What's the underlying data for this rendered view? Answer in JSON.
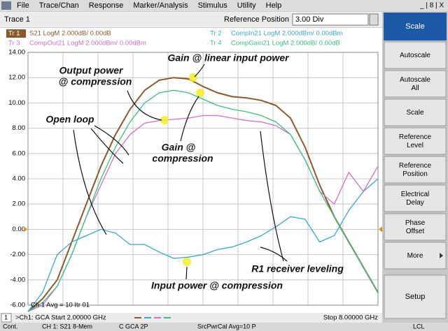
{
  "menu": [
    "File",
    "Trace/Chan",
    "Response",
    "Marker/Analysis",
    "Stimulus",
    "Utility",
    "Help"
  ],
  "window_controls": "_ | 8 | X",
  "toolbar": {
    "trace": "Trace 1",
    "field_label": "Reference Position",
    "field_value": "3.00 Div"
  },
  "softkeys": {
    "title": "Scale",
    "keys": [
      [
        "Autoscale"
      ],
      [
        "Autoscale",
        "All"
      ],
      [
        "Scale"
      ],
      [
        "Reference",
        "Level"
      ],
      [
        "Reference",
        "Position"
      ],
      [
        "Electrical",
        "Delay"
      ],
      [
        "Phase",
        "Offset"
      ],
      [
        "More"
      ]
    ],
    "bottom": "Setup"
  },
  "status": {
    "avg": "Ch 1 Avg =    10 Itr 01",
    "channel": "1",
    "start": ">Ch1: GCA Start  2.00000 GHz",
    "stop": "Stop  8.00000 GHz",
    "bar": [
      "Cont.",
      "CH 1:  S21 8-Mem",
      "C  GCA 2P",
      "SrcPwrCal Avg=10 P",
      "LCL"
    ]
  },
  "annotations": [
    [
      "Gain @ linear input power"
    ],
    [
      "Output power",
      "@ compression"
    ],
    [
      "Open loop"
    ],
    [
      "Gain @",
      "compression"
    ],
    [
      "R1 receiver leveling"
    ],
    [
      "Input power @ compression"
    ]
  ],
  "chart_data": {
    "type": "line",
    "x": [
      2,
      2.25,
      2.5,
      2.75,
      3,
      3.25,
      3.5,
      3.75,
      4,
      4.25,
      4.5,
      4.75,
      5,
      5.25,
      5.5,
      5.75,
      6,
      6.25,
      6.5,
      6.75,
      7,
      7.25,
      7.5,
      7.75,
      8
    ],
    "xlim": [
      2,
      8
    ],
    "xticks": [
      2,
      2.6,
      3.2,
      3.8,
      4.4,
      5,
      5.6,
      6.2,
      6.8,
      7.4,
      8
    ],
    "ylim": [
      -6,
      14
    ],
    "yticks": [
      {
        "value": 14,
        "label": "14.00"
      },
      {
        "value": 12,
        "label": "12.00"
      },
      {
        "value": 10,
        "label": "10.00"
      },
      {
        "value": 8,
        "label": "8.00"
      },
      {
        "value": 6,
        "label": "6.00"
      },
      {
        "value": 4,
        "label": "4.00"
      },
      {
        "value": 2,
        "label": "2.00"
      },
      {
        "value": 0,
        "label": "0.00"
      },
      {
        "value": -2,
        "label": "-2.00"
      },
      {
        "value": -4,
        "label": "-4.00"
      },
      {
        "value": -6,
        "label": "-6.00"
      }
    ],
    "grid": true,
    "series": [
      {
        "tag": "Tr 1",
        "name": "S21 LogM 2.000dB/  0.00dB",
        "color": "#8b5a2b",
        "values": [
          -6.5,
          -5.5,
          -4,
          -1,
          2,
          5,
          7.5,
          9.5,
          11,
          11.8,
          12,
          11.9,
          11.3,
          10.8,
          10.5,
          10.4,
          10.2,
          9.8,
          8.8,
          6.5,
          3.5,
          1,
          -1,
          -3,
          -5
        ]
      },
      {
        "tag": "Tr 2",
        "name": "CompIn21 LogM 2.000dBm/  0.00dBm",
        "color": "#3aa8c8",
        "values": [
          -6.5,
          -5,
          -2,
          -1,
          -0.5,
          0,
          -0.3,
          -1.2,
          -1.2,
          -1.8,
          -2.3,
          -2.2,
          -2,
          -1.6,
          -1.4,
          -1,
          -0.5,
          0.2,
          1,
          0.8,
          -1,
          -0.5,
          1.5,
          3,
          4
        ]
      },
      {
        "tag": "Tr 3",
        "name": "CompOut21 LogM 2.000dBm/  0.00dBm",
        "color": "#d070c8",
        "values": [
          -6.5,
          -6,
          -4.5,
          -2,
          1,
          3.5,
          6,
          7.5,
          8.4,
          8.6,
          8.7,
          8.8,
          9,
          9,
          8.8,
          8.6,
          8.5,
          8.2,
          7.5,
          5.5,
          3,
          2,
          4.5,
          3,
          5
        ]
      },
      {
        "tag": "Tr 4",
        "name": "CompGain21 LogM 2.000dB/  0.00dB",
        "color": "#3cbf80",
        "values": [
          -6.5,
          -5.8,
          -4.5,
          -2,
          1,
          4,
          6.5,
          8.5,
          10,
          10.8,
          11,
          10.8,
          10.3,
          9.8,
          9.5,
          9.3,
          9,
          8.5,
          7.5,
          5.5,
          3,
          1,
          -1,
          -3,
          -5
        ]
      }
    ]
  }
}
